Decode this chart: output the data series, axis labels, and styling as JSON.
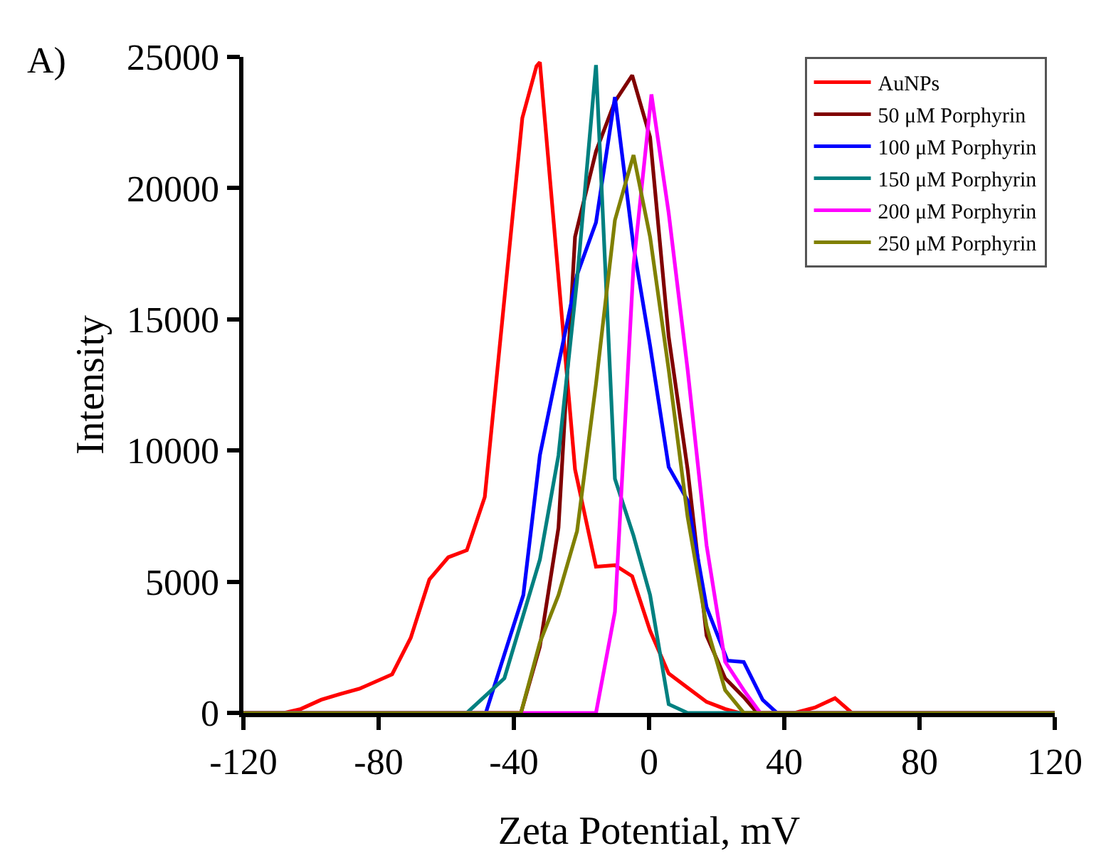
{
  "chart_data": {
    "type": "line",
    "xlabel": "Zeta Potential, mV",
    "ylabel": "Intensity",
    "annotations": [
      "A)"
    ],
    "xlim": [
      -120,
      120
    ],
    "xticks": [
      -120,
      -80,
      -40,
      0,
      40,
      80,
      120
    ],
    "ylim": [
      0,
      25000
    ],
    "yticks": [
      0,
      5000,
      10000,
      15000,
      20000,
      25000
    ],
    "legend": "top right",
    "marker": "none",
    "line_style": "solid",
    "series": [
      {
        "name": "AuNPs",
        "color": "#ff0000",
        "x": [
          -120,
          -108,
          -103,
          -97,
          -91.4,
          -85.7,
          -76,
          -70.5,
          -65,
          -59.4,
          -53.9,
          -48.6,
          -37.5,
          -33.3,
          -32.3,
          -21.9,
          -15.7,
          -10.1,
          -5,
          0.3,
          5.8,
          11.4,
          17,
          22.5,
          26.7,
          43,
          49,
          55,
          60,
          120
        ],
        "values": [
          0,
          0,
          150,
          500,
          720,
          920,
          1470,
          2860,
          5080,
          5930,
          6200,
          8230,
          22670,
          24650,
          24800,
          9280,
          5570,
          5630,
          5210,
          3130,
          1500,
          960,
          420,
          150,
          0,
          0,
          200,
          560,
          0,
          0
        ]
      },
      {
        "name": "50 μM Porphyrin",
        "color": "#800000",
        "x": [
          -120,
          -37.9,
          -32.3,
          -26.8,
          -21.9,
          -15.7,
          -10.1,
          -5,
          0.3,
          5.8,
          11.4,
          17,
          22.5,
          28,
          32,
          120
        ],
        "values": [
          0,
          0,
          2530,
          7060,
          18140,
          21400,
          23300,
          24300,
          21940,
          14340,
          9280,
          2950,
          1320,
          600,
          0,
          0
        ]
      },
      {
        "name": "100 μM Porphyrin",
        "color": "#0000ff",
        "x": [
          -120,
          -48.3,
          -42.8,
          -37.2,
          -32.3,
          -26.8,
          -21.3,
          -15.7,
          -10.1,
          -4.6,
          0.3,
          5.8,
          11.4,
          17,
          23.2,
          28,
          33.6,
          37.8,
          120
        ],
        "values": [
          0,
          0,
          2230,
          4490,
          9820,
          13280,
          16700,
          18690,
          23470,
          17780,
          13990,
          9370,
          8100,
          4030,
          1990,
          1940,
          500,
          0,
          0
        ]
      },
      {
        "name": "150 μM Porphyrin",
        "color": "#008080",
        "x": [
          -120,
          -53.9,
          -42.8,
          -32.3,
          -26.8,
          -21.3,
          -15.7,
          -10.1,
          -4.6,
          0.3,
          5.8,
          11.4,
          120
        ],
        "values": [
          0,
          0,
          1320,
          5840,
          9820,
          16510,
          24690,
          8920,
          6750,
          4490,
          330,
          0,
          0
        ]
      },
      {
        "name": "200 μM Porphyrin",
        "color": "#ff00ff",
        "x": [
          -120,
          -15.7,
          -10.1,
          -4.6,
          0.7,
          5.8,
          11.4,
          17,
          22.5,
          28,
          32.9,
          120
        ],
        "values": [
          0,
          0,
          3850,
          17060,
          23570,
          19050,
          13080,
          6390,
          1950,
          870,
          0,
          0
        ]
      },
      {
        "name": "250 μM Porphyrin",
        "color": "#808000",
        "x": [
          -120,
          -37.9,
          -32.3,
          -26.8,
          -21.3,
          -15.7,
          -10.1,
          -4.6,
          0.3,
          5.8,
          11.4,
          17,
          22.5,
          28,
          120
        ],
        "values": [
          0,
          0,
          2680,
          4490,
          6930,
          12540,
          18780,
          21260,
          18140,
          13080,
          7470,
          3310,
          870,
          0,
          0
        ]
      }
    ]
  }
}
